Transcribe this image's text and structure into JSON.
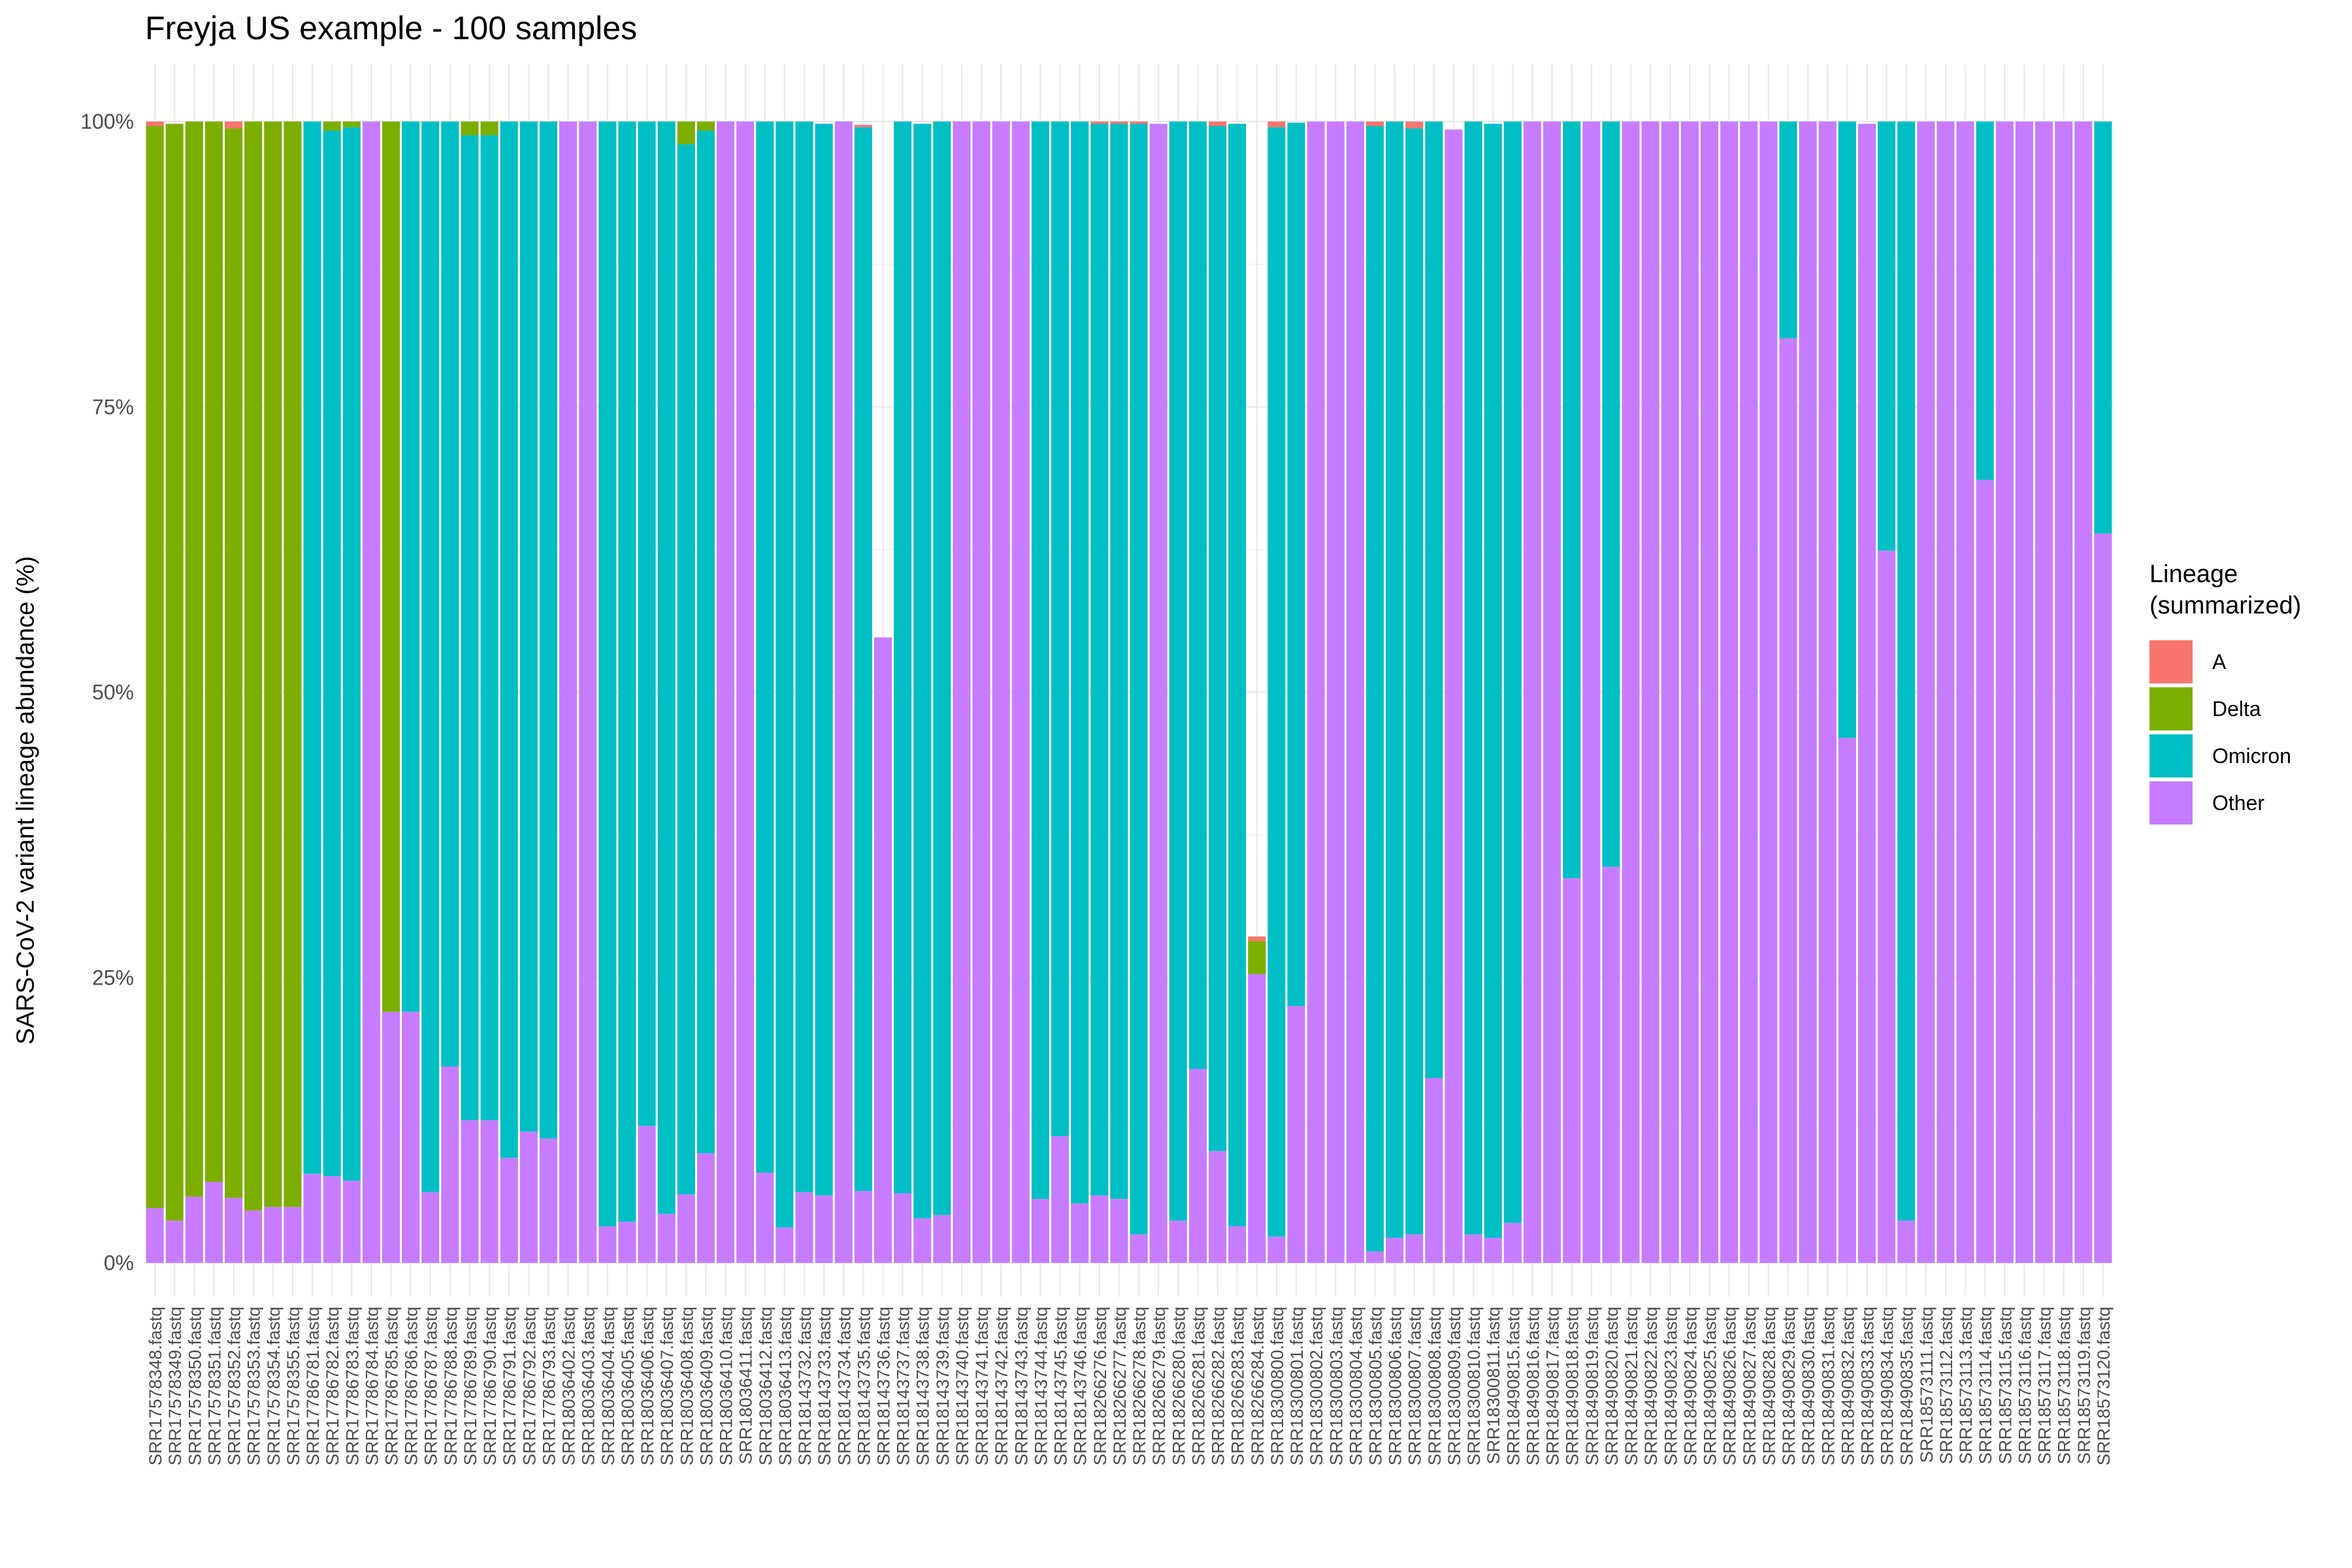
{
  "chart_data": {
    "type": "bar",
    "stacked": true,
    "title": "Freyja US example - 100 samples",
    "xlabel": "",
    "ylabel": "SARS-CoV-2 variant lineage abundance (%)",
    "ylim": [
      0,
      100
    ],
    "yticks": [
      "0%",
      "25%",
      "50%",
      "75%",
      "100%"
    ],
    "legend": {
      "title_line1": "Lineage",
      "title_line2": "(summarized)",
      "placement": "right"
    },
    "series_colors": {
      "A": "#F8766D",
      "Delta": "#7CAE00",
      "Omicron": "#00BFC4",
      "Other": "#C77CFF"
    },
    "categories": [
      "SRR17578348.fastq",
      "SRR17578349.fastq",
      "SRR17578350.fastq",
      "SRR17578351.fastq",
      "SRR17578352.fastq",
      "SRR17578353.fastq",
      "SRR17578354.fastq",
      "SRR17578355.fastq",
      "SRR17786781.fastq",
      "SRR17786782.fastq",
      "SRR17786783.fastq",
      "SRR17786784.fastq",
      "SRR17786785.fastq",
      "SRR17786786.fastq",
      "SRR17786787.fastq",
      "SRR17786788.fastq",
      "SRR17786789.fastq",
      "SRR17786790.fastq",
      "SRR17786791.fastq",
      "SRR17786792.fastq",
      "SRR17786793.fastq",
      "SRR18036402.fastq",
      "SRR18036403.fastq",
      "SRR18036404.fastq",
      "SRR18036405.fastq",
      "SRR18036406.fastq",
      "SRR18036407.fastq",
      "SRR18036408.fastq",
      "SRR18036409.fastq",
      "SRR18036410.fastq",
      "SRR18036411.fastq",
      "SRR18036412.fastq",
      "SRR18036413.fastq",
      "SRR18143732.fastq",
      "SRR18143733.fastq",
      "SRR18143734.fastq",
      "SRR18143735.fastq",
      "SRR18143736.fastq",
      "SRR18143737.fastq",
      "SRR18143738.fastq",
      "SRR18143739.fastq",
      "SRR18143740.fastq",
      "SRR18143741.fastq",
      "SRR18143742.fastq",
      "SRR18143743.fastq",
      "SRR18143744.fastq",
      "SRR18143745.fastq",
      "SRR18143746.fastq",
      "SRR18266276.fastq",
      "SRR18266277.fastq",
      "SRR18266278.fastq",
      "SRR18266279.fastq",
      "SRR18266280.fastq",
      "SRR18266281.fastq",
      "SRR18266282.fastq",
      "SRR18266283.fastq",
      "SRR18266284.fastq",
      "SRR18300800.fastq",
      "SRR18300801.fastq",
      "SRR18300802.fastq",
      "SRR18300803.fastq",
      "SRR18300804.fastq",
      "SRR18300805.fastq",
      "SRR18300806.fastq",
      "SRR18300807.fastq",
      "SRR18300808.fastq",
      "SRR18300809.fastq",
      "SRR18300810.fastq",
      "SRR18300811.fastq",
      "SRR18490815.fastq",
      "SRR18490816.fastq",
      "SRR18490817.fastq",
      "SRR18490818.fastq",
      "SRR18490819.fastq",
      "SRR18490820.fastq",
      "SRR18490821.fastq",
      "SRR18490822.fastq",
      "SRR18490823.fastq",
      "SRR18490824.fastq",
      "SRR18490825.fastq",
      "SRR18490826.fastq",
      "SRR18490827.fastq",
      "SRR18490828.fastq",
      "SRR18490829.fastq",
      "SRR18490830.fastq",
      "SRR18490831.fastq",
      "SRR18490832.fastq",
      "SRR18490833.fastq",
      "SRR18490834.fastq",
      "SRR18490835.fastq",
      "SRR18573111.fastq",
      "SRR18573112.fastq",
      "SRR18573113.fastq",
      "SRR18573114.fastq",
      "SRR18573115.fastq",
      "SRR18573116.fastq",
      "SRR18573117.fastq",
      "SRR18573118.fastq",
      "SRR18573119.fastq",
      "SRR18573120.fastq"
    ],
    "series": [
      {
        "name": "Other",
        "values": [
          4.8,
          3.7,
          5.8,
          7.1,
          5.7,
          4.6,
          4.9,
          4.9,
          7.8,
          7.6,
          7.2,
          100,
          22,
          22,
          6.2,
          17.2,
          12.5,
          12.5,
          9.2,
          11.5,
          10.9,
          100,
          100,
          3.2,
          3.6,
          12,
          4.3,
          6,
          9.6,
          100,
          100,
          7.9,
          3.1,
          6.2,
          5.9,
          100,
          6.3,
          54.8,
          6.1,
          3.9,
          4.2,
          100,
          100,
          100,
          100,
          5.6,
          11.1,
          5.2,
          5.9,
          5.6,
          2.5,
          99.8,
          3.7,
          17,
          9.8,
          3.2,
          25.3,
          2.3,
          22.5,
          100,
          100,
          100,
          1,
          2.2,
          2.5,
          16.2,
          99.3,
          2.5,
          2.2,
          3.5,
          100,
          100,
          33.7,
          100,
          34.7,
          100,
          100,
          100,
          100,
          100,
          100,
          100,
          100,
          81,
          100,
          100,
          46,
          99.8,
          62.4,
          3.7,
          100,
          100,
          100,
          68.6,
          100,
          100,
          100,
          100,
          100,
          63.9
        ]
      },
      {
        "name": "Omicron",
        "values": [
          0,
          0,
          0,
          0,
          0,
          0,
          0,
          0,
          92.2,
          91.6,
          92.3,
          0,
          0,
          78,
          93.8,
          82.8,
          86.3,
          86.3,
          90.8,
          88.5,
          89.1,
          0,
          0,
          96.8,
          96.4,
          88,
          95.7,
          92,
          89.6,
          0,
          0,
          92.1,
          96.9,
          93.8,
          93.9,
          0,
          93.2,
          0,
          93.9,
          95.9,
          95.8,
          0,
          0,
          0,
          0,
          94.4,
          88.9,
          94.8,
          93.9,
          94.2,
          97.3,
          0,
          96.3,
          83,
          89.8,
          96.6,
          0,
          97.2,
          77.4,
          0,
          0,
          0,
          98.6,
          97.8,
          96.9,
          83.8,
          0,
          97.5,
          97.6,
          96.5,
          0,
          0,
          66.3,
          0,
          65.3,
          0,
          0,
          0,
          0,
          0,
          0,
          0,
          0,
          19,
          0,
          0,
          54,
          0,
          37.6,
          96.3,
          0,
          0,
          0,
          31.4,
          0,
          0,
          0,
          0,
          0,
          36.1
        ]
      },
      {
        "name": "Delta",
        "values": [
          94.8,
          96.1,
          94.2,
          92.9,
          93.7,
          95.4,
          95.1,
          95.1,
          0,
          0.8,
          0.5,
          0,
          78,
          0,
          0,
          0,
          1.2,
          1.2,
          0,
          0,
          0,
          0,
          0,
          0,
          0,
          0,
          0,
          2,
          0.8,
          0,
          0,
          0,
          0,
          0,
          0,
          0,
          0,
          0,
          0,
          0,
          0,
          0,
          0,
          0,
          0,
          0,
          0,
          0,
          0,
          0,
          0,
          0,
          0,
          0,
          0,
          0,
          2.9,
          0,
          0,
          0,
          0,
          0,
          0,
          0,
          0,
          0,
          0,
          0,
          0,
          0,
          0,
          0,
          0,
          0,
          0,
          0,
          0,
          0,
          0,
          0,
          0,
          0,
          0,
          0,
          0,
          0,
          0,
          0,
          0,
          0,
          0,
          0,
          0,
          0,
          0,
          0,
          0,
          0,
          0,
          0
        ]
      },
      {
        "name": "A",
        "values": [
          0.4,
          0,
          0,
          0,
          0.6,
          0,
          0,
          0,
          0,
          0,
          0,
          0,
          0,
          0,
          0,
          0,
          0,
          0,
          0,
          0,
          0,
          0,
          0,
          0,
          0,
          0,
          0,
          0,
          0,
          0,
          0,
          0,
          0,
          0,
          0,
          0,
          0.2,
          0,
          0,
          0,
          0,
          0,
          0,
          0,
          0,
          0,
          0,
          0,
          0.2,
          0.2,
          0.2,
          0,
          0,
          0,
          0.4,
          0,
          0.4,
          0.5,
          0,
          0,
          0,
          0,
          0.4,
          0,
          0.6,
          0,
          0,
          0,
          0,
          0,
          0,
          0,
          0,
          0,
          0,
          0,
          0,
          0,
          0,
          0,
          0,
          0,
          0,
          0,
          0,
          0,
          0,
          0,
          0,
          0,
          0,
          0,
          0,
          0,
          0,
          0,
          0,
          0,
          0,
          0
        ]
      }
    ]
  }
}
